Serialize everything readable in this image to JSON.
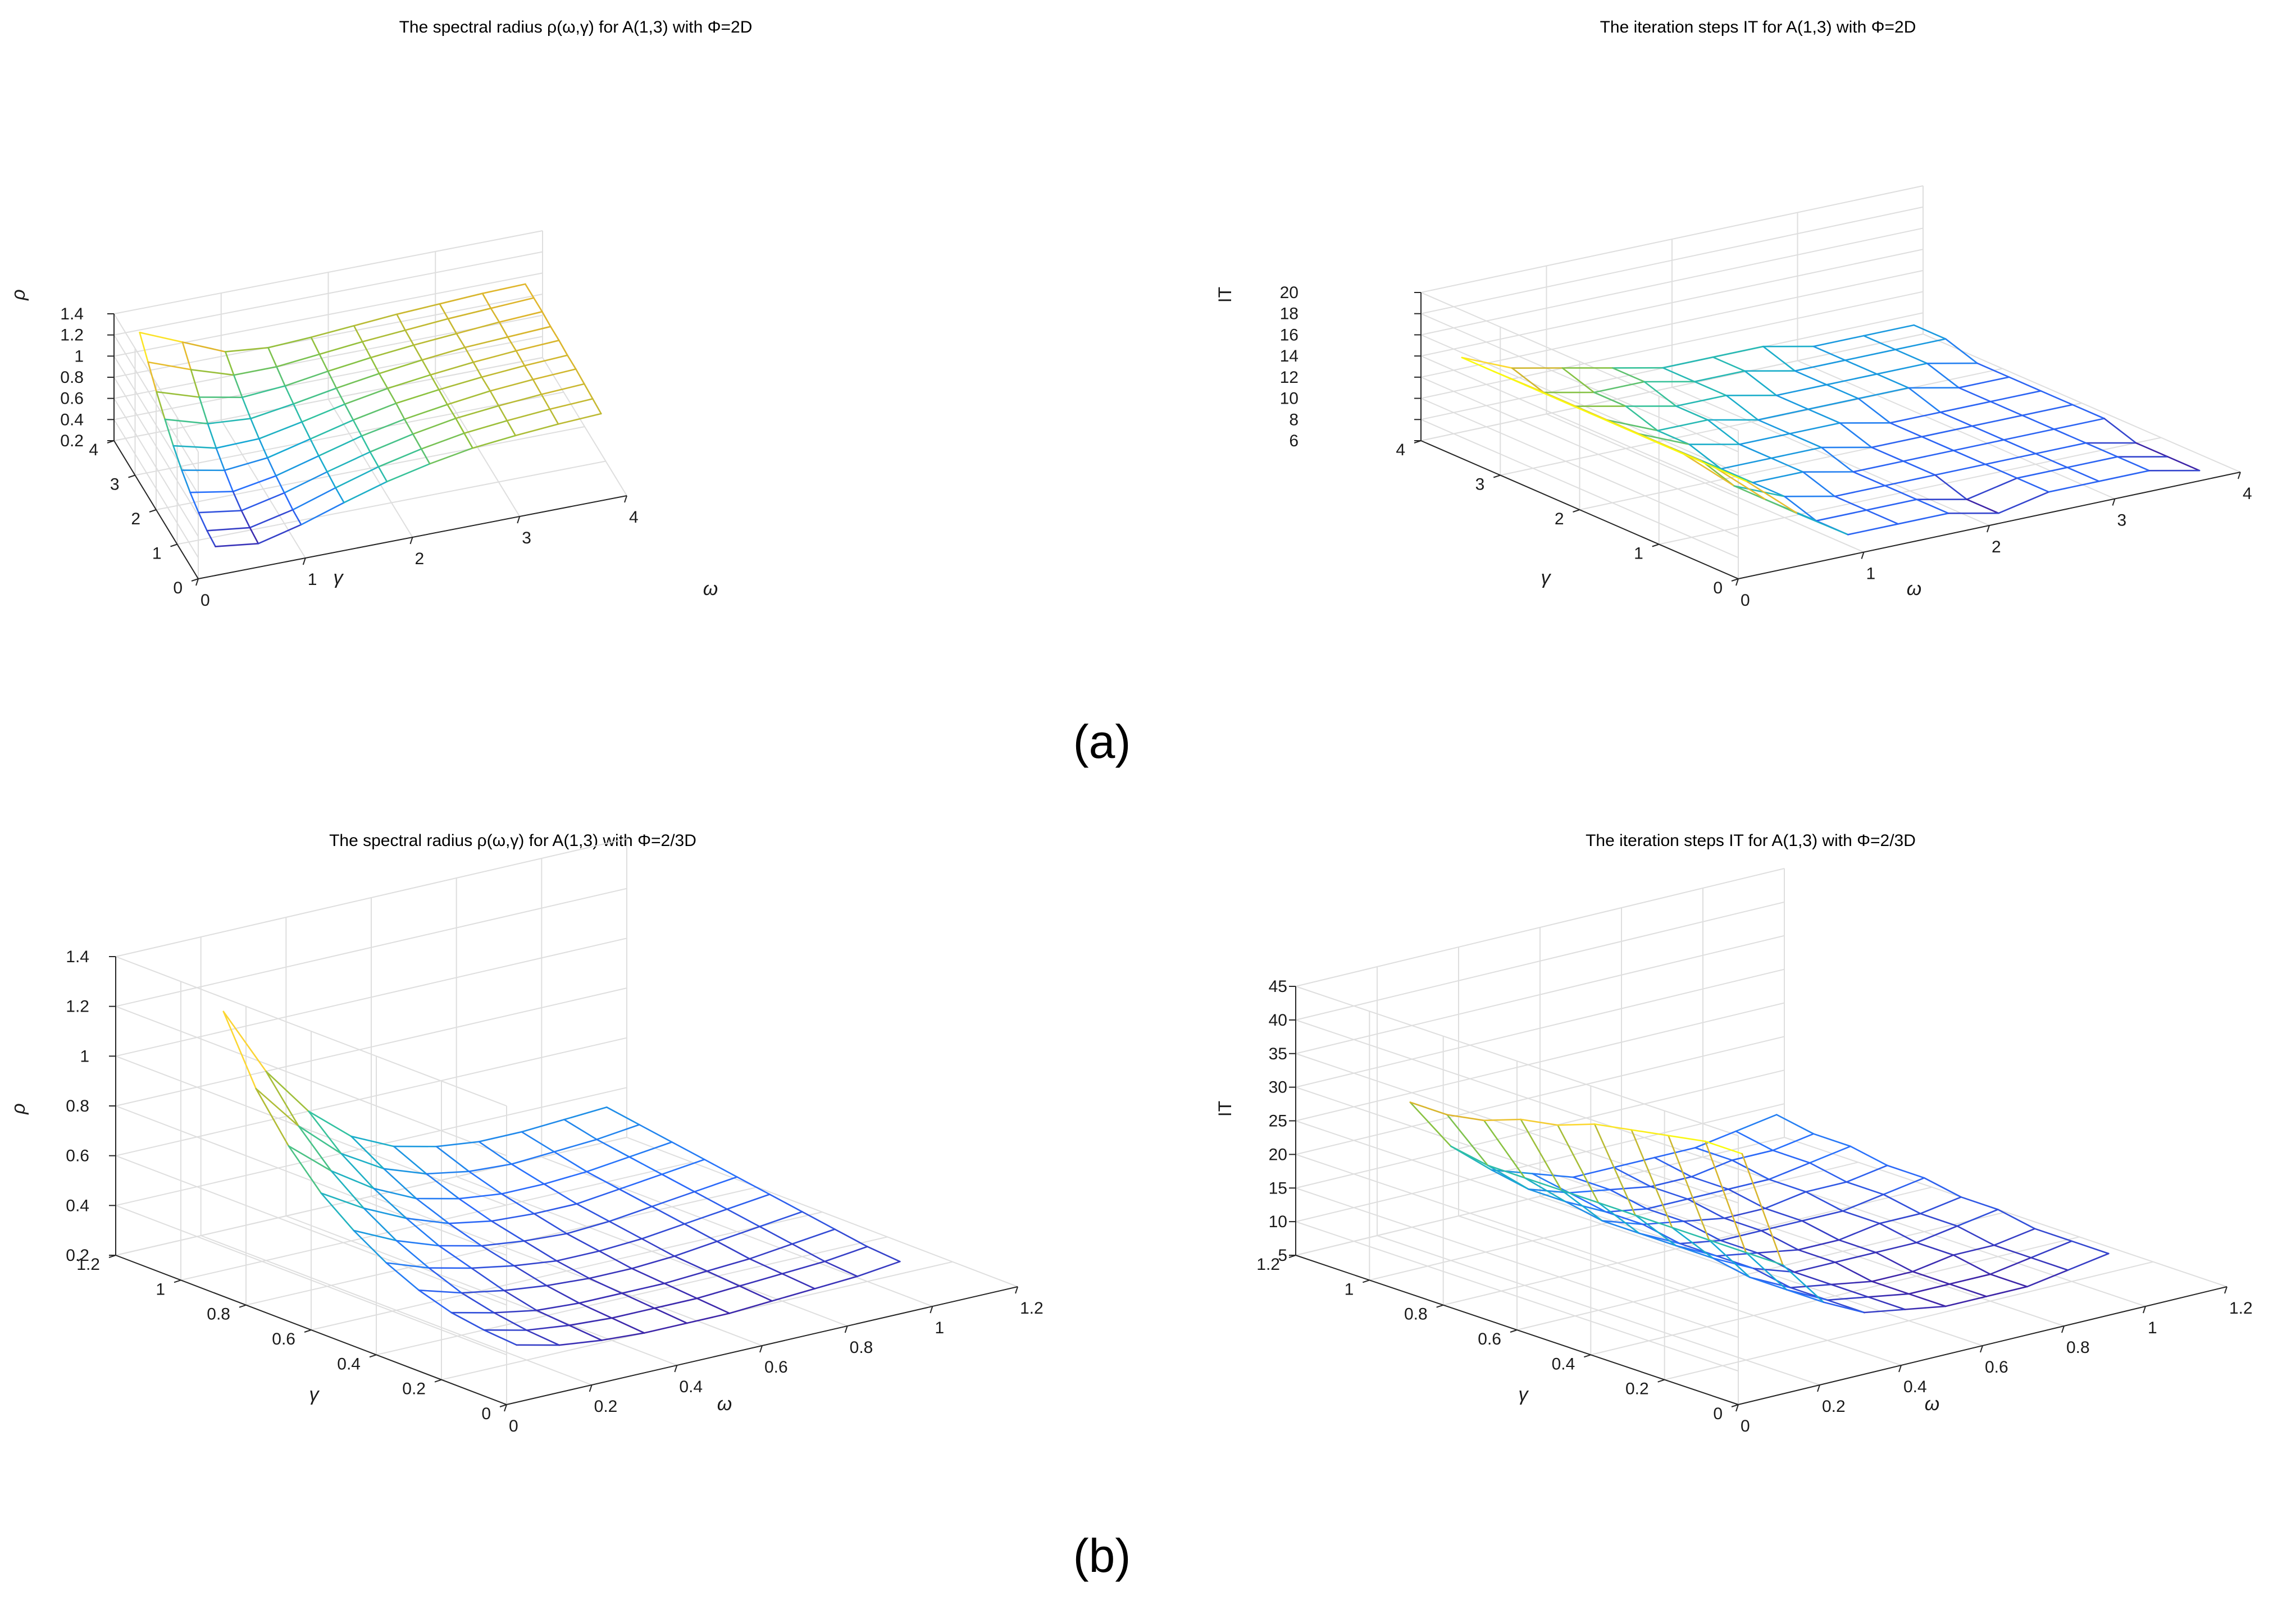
{
  "captions": [
    "(a)",
    "(b)"
  ],
  "colormap": [
    "#3e26a8",
    "#2a6efe",
    "#17a9d4",
    "#32c2a0",
    "#8cc23f",
    "#e0b52c",
    "#fcd535",
    "#f9fb0e"
  ],
  "chart_data": [
    {
      "type": "surface",
      "title": "The spectral radius  ρ(ω,γ) for A(1,3) with  Φ=2D",
      "xlabel": "ω",
      "ylabel": "γ",
      "zlabel": "ρ",
      "xlim": [
        0,
        4
      ],
      "ylim": [
        0,
        4
      ],
      "zlim": [
        0.2,
        1.4
      ],
      "xticks": [
        "0",
        "1",
        "2",
        "3",
        "4"
      ],
      "yticks": [
        "0",
        "1",
        "2",
        "3",
        "4"
      ],
      "zticks": [
        "0.2",
        "0.4",
        "0.6",
        "0.8",
        "1",
        "1.2",
        "1.4"
      ],
      "grid": true,
      "x": [
        0.2,
        0.6,
        1.0,
        1.4,
        1.8,
        2.2,
        2.6,
        3.0,
        3.4,
        3.8
      ],
      "y": [
        0.2,
        0.6,
        1.0,
        1.4,
        1.8,
        2.2,
        2.6,
        3.0,
        3.4,
        3.8
      ],
      "z": [
        [
          0.4,
          0.35,
          0.45,
          0.58,
          0.7,
          0.79,
          0.86,
          0.9,
          0.93,
          0.95
        ],
        [
          0.42,
          0.37,
          0.46,
          0.59,
          0.71,
          0.8,
          0.87,
          0.91,
          0.94,
          0.96
        ],
        [
          0.46,
          0.4,
          0.49,
          0.61,
          0.72,
          0.81,
          0.88,
          0.92,
          0.95,
          0.97
        ],
        [
          0.52,
          0.45,
          0.52,
          0.63,
          0.74,
          0.82,
          0.88,
          0.93,
          0.96,
          0.98
        ],
        [
          0.6,
          0.52,
          0.56,
          0.66,
          0.76,
          0.84,
          0.89,
          0.93,
          0.96,
          0.98
        ],
        [
          0.7,
          0.6,
          0.61,
          0.69,
          0.78,
          0.85,
          0.9,
          0.94,
          0.97,
          0.99
        ],
        [
          0.82,
          0.7,
          0.67,
          0.73,
          0.8,
          0.86,
          0.91,
          0.95,
          0.97,
          0.99
        ],
        [
          0.95,
          0.82,
          0.74,
          0.77,
          0.83,
          0.88,
          0.92,
          0.95,
          0.98,
          1.0
        ],
        [
          1.1,
          0.95,
          0.82,
          0.82,
          0.86,
          0.9,
          0.93,
          0.96,
          0.98,
          1.0
        ],
        [
          1.25,
          1.08,
          0.91,
          0.87,
          0.89,
          0.92,
          0.95,
          0.97,
          0.99,
          1.0
        ]
      ]
    },
    {
      "type": "surface",
      "title": "The iteration steps IT for A(1,3) with   Φ=2D",
      "xlabel": "ω",
      "ylabel": "γ",
      "zlabel": "IT",
      "xlim": [
        0,
        4
      ],
      "ylim": [
        0,
        4
      ],
      "zlim": [
        6,
        20
      ],
      "xticks": [
        "0",
        "1",
        "2",
        "3",
        "4"
      ],
      "yticks": [
        "0",
        "1",
        "2",
        "3",
        "4"
      ],
      "zticks": [
        "6",
        "8",
        "10",
        "12",
        "14",
        "16",
        "18",
        "20"
      ],
      "grid": true,
      "x": [
        0.2,
        0.6,
        1.0,
        1.4,
        1.8,
        2.2,
        2.6,
        3.0,
        3.4,
        3.8
      ],
      "y": [
        0.2,
        0.6,
        1.0,
        1.4,
        1.8,
        2.2,
        2.6,
        3.0,
        3.4,
        3.8
      ],
      "z": [
        [
          14,
          10,
          7,
          7,
          7,
          6,
          7,
          7,
          7,
          6
        ],
        [
          14,
          10,
          7,
          7,
          7,
          6,
          7,
          7,
          7,
          6
        ],
        [
          14,
          10,
          8,
          7,
          7,
          7,
          7,
          7,
          7,
          6
        ],
        [
          14,
          11,
          8,
          8,
          7,
          7,
          7,
          7,
          7,
          7
        ],
        [
          14,
          11,
          8,
          8,
          8,
          7,
          7,
          7,
          7,
          7
        ],
        [
          14,
          11,
          9,
          8,
          8,
          8,
          7,
          7,
          7,
          7
        ],
        [
          14,
          11,
          9,
          9,
          8,
          8,
          8,
          8,
          7,
          7
        ],
        [
          14,
          11,
          10,
          9,
          9,
          8,
          8,
          8,
          8,
          7
        ],
        [
          14,
          11,
          10,
          10,
          9,
          9,
          8,
          8,
          8,
          8
        ],
        [
          14,
          12,
          11,
          10,
          9,
          9,
          9,
          8,
          8,
          8
        ]
      ]
    },
    {
      "type": "surface",
      "title": "The spectral radius  ρ(ω,γ) for A(1,3) with  Φ=2/3D",
      "xlabel": "ω",
      "ylabel": "γ",
      "zlabel": "ρ",
      "xlim": [
        0,
        1.2
      ],
      "ylim": [
        0,
        1.2
      ],
      "zlim": [
        0.2,
        1.4
      ],
      "xticks": [
        "0",
        "0.2",
        "0.4",
        "0.6",
        "0.8",
        "1",
        "1.2"
      ],
      "yticks": [
        "0",
        "0.2",
        "0.4",
        "0.6",
        "0.8",
        "1",
        "1.2"
      ],
      "zticks": [
        "0.2",
        "0.4",
        "0.6",
        "0.8",
        "1",
        "1.2",
        "1.4"
      ],
      "grid": true,
      "x": [
        0.1,
        0.2,
        0.3,
        0.4,
        0.5,
        0.6,
        0.7,
        0.8,
        0.9,
        1.0
      ],
      "y": [
        0.1,
        0.2,
        0.3,
        0.4,
        0.5,
        0.6,
        0.7,
        0.8,
        0.9,
        1.0
      ],
      "z": [
        [
          0.35,
          0.31,
          0.29,
          0.28,
          0.28,
          0.28,
          0.29,
          0.3,
          0.31,
          0.33
        ],
        [
          0.36,
          0.32,
          0.3,
          0.29,
          0.29,
          0.29,
          0.3,
          0.31,
          0.32,
          0.34
        ],
        [
          0.38,
          0.34,
          0.31,
          0.3,
          0.3,
          0.3,
          0.31,
          0.32,
          0.34,
          0.36
        ],
        [
          0.42,
          0.37,
          0.34,
          0.32,
          0.31,
          0.31,
          0.32,
          0.34,
          0.36,
          0.38
        ],
        [
          0.48,
          0.42,
          0.38,
          0.35,
          0.33,
          0.33,
          0.34,
          0.36,
          0.38,
          0.4
        ],
        [
          0.56,
          0.48,
          0.42,
          0.38,
          0.36,
          0.35,
          0.36,
          0.38,
          0.4,
          0.42
        ],
        [
          0.66,
          0.56,
          0.48,
          0.42,
          0.39,
          0.38,
          0.38,
          0.4,
          0.42,
          0.44
        ],
        [
          0.8,
          0.66,
          0.55,
          0.47,
          0.43,
          0.41,
          0.41,
          0.42,
          0.44,
          0.46
        ],
        [
          0.98,
          0.79,
          0.64,
          0.54,
          0.48,
          0.45,
          0.44,
          0.45,
          0.46,
          0.48
        ],
        [
          1.24,
          0.96,
          0.76,
          0.62,
          0.54,
          0.5,
          0.48,
          0.48,
          0.49,
          0.5
        ]
      ]
    },
    {
      "type": "surface",
      "title": "The iteration steps IT for A(1,3) with   Φ=2/3D",
      "xlabel": "ω",
      "ylabel": "γ",
      "zlabel": "IT",
      "xlim": [
        0,
        1.2
      ],
      "ylim": [
        0,
        1.2
      ],
      "zlim": [
        5,
        45
      ],
      "xticks": [
        "0",
        "0.2",
        "0.4",
        "0.6",
        "0.8",
        "1",
        "1.2"
      ],
      "yticks": [
        "0",
        "0.2",
        "0.4",
        "0.6",
        "0.8",
        "1",
        "1.2"
      ],
      "zticks": [
        "5",
        "10",
        "15",
        "20",
        "25",
        "30",
        "35",
        "40",
        "45"
      ],
      "grid": true,
      "x": [
        0.1,
        0.2,
        0.3,
        0.4,
        0.5,
        0.6,
        0.7,
        0.8,
        0.9,
        1.0
      ],
      "y": [
        0.1,
        0.2,
        0.3,
        0.4,
        0.5,
        0.6,
        0.7,
        0.8,
        0.9,
        1.0
      ],
      "z": [
        [
          39,
          21,
          14,
          11,
          10,
          9,
          9,
          9,
          10,
          11
        ],
        [
          39,
          21,
          14,
          11,
          10,
          9,
          9,
          9,
          10,
          11
        ],
        [
          38,
          21,
          14,
          11,
          10,
          9,
          9,
          10,
          10,
          11
        ],
        [
          37,
          21,
          15,
          12,
          10,
          10,
          10,
          10,
          11,
          12
        ],
        [
          36,
          21,
          15,
          12,
          11,
          10,
          10,
          11,
          11,
          12
        ],
        [
          34,
          21,
          15,
          12,
          11,
          11,
          11,
          11,
          12,
          13
        ],
        [
          33,
          21,
          15,
          13,
          12,
          11,
          11,
          12,
          12,
          13
        ],
        [
          31,
          21,
          16,
          13,
          12,
          12,
          12,
          12,
          13,
          14
        ],
        [
          30,
          21,
          16,
          14,
          13,
          12,
          12,
          13,
          13,
          14
        ],
        [
          30,
          22,
          17,
          15,
          13,
          13,
          13,
          13,
          14,
          15
        ]
      ]
    }
  ]
}
